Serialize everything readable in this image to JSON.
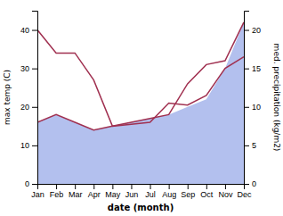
{
  "chart_data": {
    "type": "line",
    "xlabel": "date (month)",
    "ylabel": "max temp (C)",
    "y2label": "med. precipitation (kg/m2)",
    "categories": [
      "Jan",
      "Feb",
      "Mar",
      "Apr",
      "May",
      "Jun",
      "Jul",
      "Aug",
      "Sep",
      "Oct",
      "Nov",
      "Dec"
    ],
    "series": [
      {
        "type": "area",
        "axis": "y2",
        "color": "#b3c0ee",
        "values": [
          8,
          9,
          8,
          7,
          7.5,
          8,
          8.5,
          9,
          10,
          11,
          15,
          21
        ]
      },
      {
        "type": "line",
        "axis": "y2",
        "color": "#a03050",
        "values": [
          8,
          9,
          8,
          7,
          7.5,
          8,
          8.5,
          9,
          13,
          15.5,
          16,
          21
        ]
      },
      {
        "type": "line",
        "axis": "y",
        "color": "#a03050",
        "values": [
          40,
          34,
          34,
          27,
          15,
          15.5,
          16,
          21,
          20.5,
          23,
          30,
          33
        ]
      }
    ],
    "ylim": [
      0,
      45
    ],
    "yticks": [
      0,
      10,
      20,
      30,
      40
    ],
    "y2lim": [
      0,
      22.5
    ],
    "y2ticks": [
      0,
      5,
      10,
      15,
      20
    ],
    "grid": false
  }
}
